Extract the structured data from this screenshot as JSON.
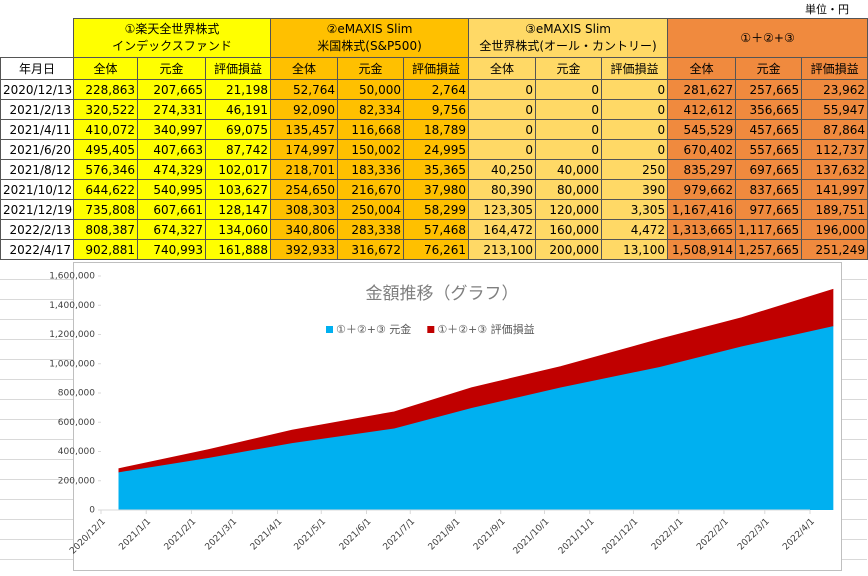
{
  "unit": "単位・円",
  "table": {
    "header_groups": [
      [
        "①楽天全世界株式",
        "インデックスファンド"
      ],
      [
        "②eMAXIS Slim",
        "米国株式(S&P500)"
      ],
      [
        "③eMAXIS Slim",
        "全世界株式(オール・カントリー)"
      ],
      [
        "①＋②+③"
      ]
    ],
    "date_header": "年月日",
    "subheaders": [
      "全体",
      "元金",
      "評価損益",
      "全体",
      "元金",
      "評価損益",
      "全体",
      "元金",
      "評価損益",
      "全体",
      "元金",
      "評価損益"
    ],
    "rows": [
      [
        "2020/12/13",
        "228,863",
        "207,665",
        "21,198",
        "52,764",
        "50,000",
        "2,764",
        "0",
        "0",
        "0",
        "281,627",
        "257,665",
        "23,962"
      ],
      [
        "2021/2/13",
        "320,522",
        "274,331",
        "46,191",
        "92,090",
        "82,334",
        "9,756",
        "0",
        "0",
        "0",
        "412,612",
        "356,665",
        "55,947"
      ],
      [
        "2021/4/11",
        "410,072",
        "340,997",
        "69,075",
        "135,457",
        "116,668",
        "18,789",
        "0",
        "0",
        "0",
        "545,529",
        "457,665",
        "87,864"
      ],
      [
        "2021/6/20",
        "495,405",
        "407,663",
        "87,742",
        "174,997",
        "150,002",
        "24,995",
        "0",
        "0",
        "0",
        "670,402",
        "557,665",
        "112,737"
      ],
      [
        "2021/8/12",
        "576,346",
        "474,329",
        "102,017",
        "218,701",
        "183,336",
        "35,365",
        "40,250",
        "40,000",
        "250",
        "835,297",
        "697,665",
        "137,632"
      ],
      [
        "2021/10/12",
        "644,622",
        "540,995",
        "103,627",
        "254,650",
        "216,670",
        "37,980",
        "80,390",
        "80,000",
        "390",
        "979,662",
        "837,665",
        "141,997"
      ],
      [
        "2021/12/19",
        "735,808",
        "607,661",
        "128,147",
        "308,303",
        "250,004",
        "58,299",
        "123,305",
        "120,000",
        "3,305",
        "1,167,416",
        "977,665",
        "189,751"
      ],
      [
        "2022/2/13",
        "808,387",
        "674,327",
        "134,060",
        "340,806",
        "283,338",
        "57,468",
        "164,472",
        "160,000",
        "4,472",
        "1,313,665",
        "1,117,665",
        "196,000"
      ],
      [
        "2022/4/17",
        "902,881",
        "740,993",
        "161,888",
        "392,933",
        "316,672",
        "76,261",
        "213,100",
        "200,000",
        "13,100",
        "1,508,914",
        "1,257,665",
        "251,249"
      ]
    ]
  },
  "chart_data": {
    "type": "stacked_area",
    "title": "金額推移（グラフ）",
    "legend": "top",
    "x": [
      "2020/12/13",
      "2021/2/13",
      "2021/4/11",
      "2021/6/20",
      "2021/8/12",
      "2021/10/12",
      "2021/12/19",
      "2022/2/13",
      "2022/4/17"
    ],
    "xlim": [
      "2020/12/1",
      "2022/4/1"
    ],
    "xticks": [
      "2020/12/1",
      "2021/1/1",
      "2021/2/1",
      "2021/3/1",
      "2021/4/1",
      "2021/5/1",
      "2021/6/1",
      "2021/7/1",
      "2021/8/1",
      "2021/9/1",
      "2021/10/1",
      "2021/11/1",
      "2021/12/1",
      "2022/1/1",
      "2022/2/1",
      "2022/3/1",
      "2022/4/1"
    ],
    "ylim": [
      0,
      1600000
    ],
    "yticks": [
      0,
      {
        "value": 200000,
        "label": "200,000"
      },
      {
        "value": 400000,
        "label": "400,000"
      },
      {
        "value": 600000,
        "label": "600,000"
      },
      {
        "value": 800000,
        "label": "800,000"
      },
      {
        "value": 1000000,
        "label": "1,000,000"
      },
      {
        "value": 1200000,
        "label": "1,200,000"
      },
      {
        "value": 1400000,
        "label": "1,400,000"
      },
      {
        "value": 1600000,
        "label": "1,600,000"
      }
    ],
    "series": [
      {
        "name": "①＋②+③ 元金",
        "color": "#00b0f0",
        "values": [
          257665,
          356665,
          457665,
          557665,
          697665,
          837665,
          977665,
          1117665,
          1257665
        ]
      },
      {
        "name": "①＋②+③ 評価損益",
        "color": "#c00000",
        "values": [
          23962,
          55947,
          87864,
          112737,
          137632,
          141997,
          189751,
          196000,
          251249
        ]
      }
    ]
  }
}
